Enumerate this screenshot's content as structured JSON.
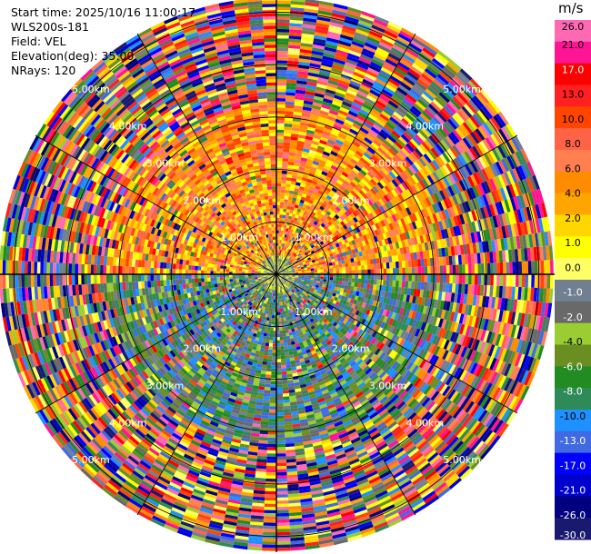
{
  "header": {
    "start_time": "Start time: 2025/10/16 11:00:17",
    "site": "WLS200s-181",
    "field": "Field: VEL",
    "elevation": "Elevation(deg): 35.00",
    "nrays": "NRays: 120"
  },
  "chart_data": {
    "type": "heatmap",
    "projection": "polar-ppi",
    "field": "VEL",
    "elevation_deg": 35.0,
    "n_rays": 120,
    "max_range_km": 5.3,
    "range_rings_km": [
      1,
      2,
      3,
      4,
      5
    ],
    "ring_labels": [
      "1.00km",
      "2.00km",
      "3.00km",
      "4.00km",
      "5.00km"
    ],
    "colorbar": {
      "unit": "m/s",
      "ticks": [
        "26.0",
        "21.0",
        "17.0",
        "13.0",
        "10.0",
        "8.0",
        "6.0",
        "4.0",
        "2.0",
        "1.0",
        "0.0",
        "-1.0",
        "-2.0",
        "-4.0",
        "-6.0",
        "-8.0",
        "-10.0",
        "-13.0",
        "-17.0",
        "-21.0",
        "-26.0",
        "-30.0"
      ],
      "colors": [
        "#ff69b4",
        "#ff1493",
        "#ff0000",
        "#ff2020",
        "#ff4500",
        "#ff6347",
        "#ff7f50",
        "#ff8c00",
        "#ffa500",
        "#ffd700",
        "#ffff00",
        "#ffff66",
        "#708090",
        "#696969",
        "#9acd32",
        "#6b8e23",
        "#228b22",
        "#2e8b57",
        "#1e90ff",
        "#4169e1",
        "#0000ff",
        "#0000cd",
        "#000080",
        "#191970"
      ]
    }
  }
}
